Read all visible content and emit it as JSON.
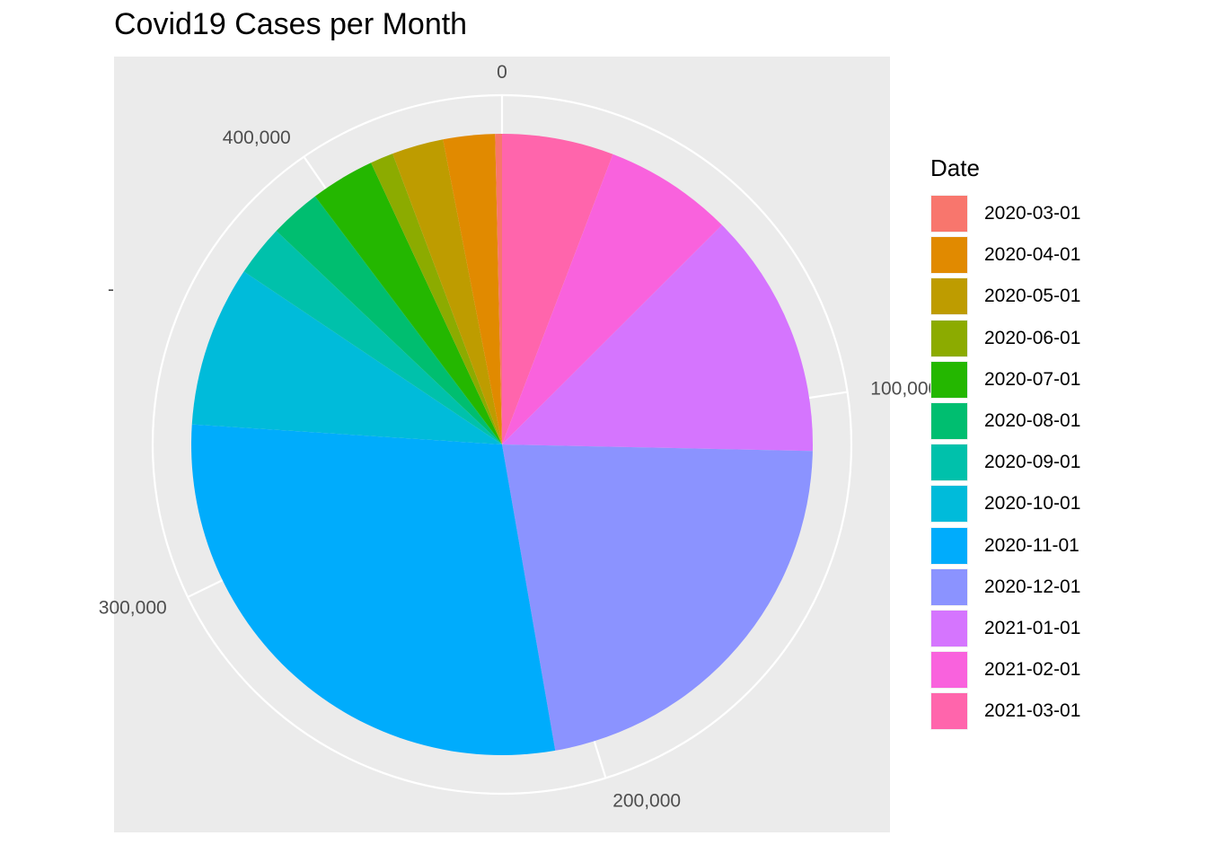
{
  "chart_data": {
    "type": "pie",
    "title": "Covid19 Cases per Month",
    "legend_title": "Date",
    "legend_position": "right",
    "ylabel": "",
    "y_axis_tick": "-",
    "grid": true,
    "background": "#ebebeb",
    "categories": [
      "2020-03-01",
      "2020-04-01",
      "2020-05-01",
      "2020-06-01",
      "2020-07-01",
      "2020-08-01",
      "2020-09-01",
      "2020-10-01",
      "2020-11-01",
      "2020-12-01",
      "2021-01-01",
      "2021-02-01",
      "2021-03-01"
    ],
    "values": [
      1570,
      11900,
      11880,
      5300,
      14800,
      11800,
      11800,
      37000,
      127300,
      97000,
      56700,
      29700,
      25700
    ],
    "colors": [
      "#F8766D",
      "#E18A00",
      "#BE9C00",
      "#8CAB00",
      "#24B700",
      "#00BE70",
      "#00C1AB",
      "#00BBDA",
      "#00ACFC",
      "#8B93FF",
      "#D575FE",
      "#F962DD",
      "#FF65AC"
    ],
    "axis_ticks": [
      {
        "value": 0,
        "label": "0"
      },
      {
        "value": 100000,
        "label": "100,000"
      },
      {
        "value": 200000,
        "label": "200,000"
      },
      {
        "value": 300000,
        "label": "300,000"
      },
      {
        "value": 400000,
        "label": "400,000"
      }
    ]
  }
}
